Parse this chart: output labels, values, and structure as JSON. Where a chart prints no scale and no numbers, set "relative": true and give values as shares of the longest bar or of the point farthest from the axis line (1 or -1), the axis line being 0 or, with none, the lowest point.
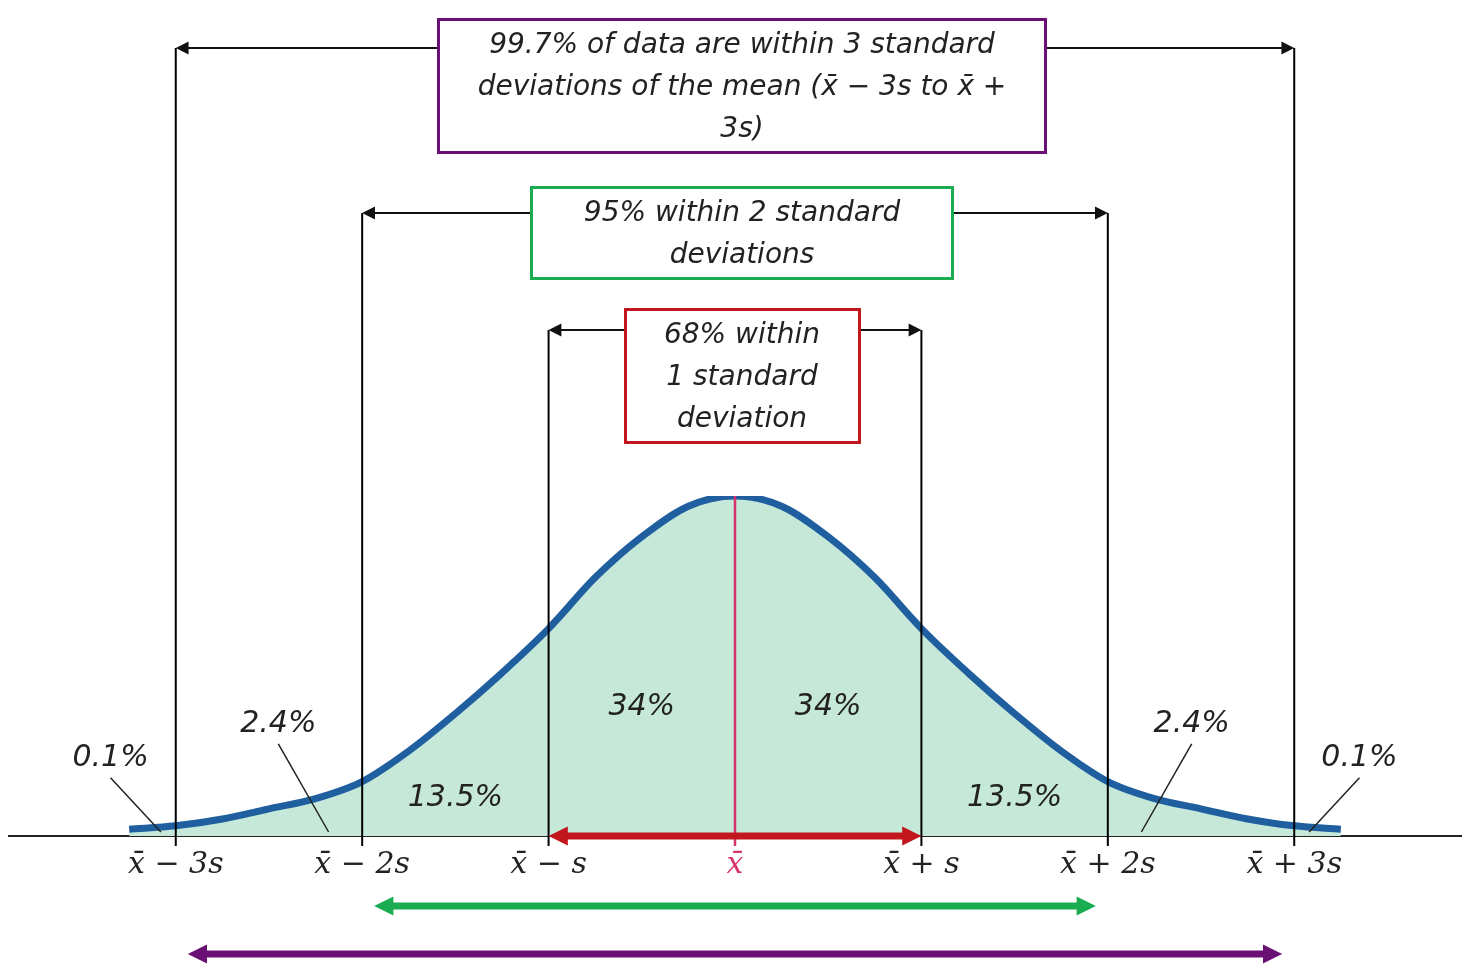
{
  "chart_data": {
    "type": "area",
    "relative": true,
    "xlim": [
      -3.9,
      3.9
    ],
    "xticks": [
      {
        "value": -3,
        "label": "x̄ − 3s"
      },
      {
        "value": -2,
        "label": "x̄ − 2s"
      },
      {
        "value": -1,
        "label": "x̄ − s"
      },
      {
        "value": 0,
        "label": "x̄"
      },
      {
        "value": 1,
        "label": "x̄ + s"
      },
      {
        "value": 2,
        "label": "x̄ + 2s"
      },
      {
        "value": 3,
        "label": "x̄ + 3s"
      }
    ],
    "x": [
      -3.25,
      -3,
      -2.75,
      -2.5,
      -2.25,
      -2,
      -1.75,
      -1.5,
      -1.25,
      -1,
      -0.75,
      -0.5,
      -0.25,
      0,
      0.25,
      0.5,
      0.75,
      1,
      1.25,
      1.5,
      1.75,
      2,
      2.25,
      2.5,
      2.75,
      3,
      3.25
    ],
    "series": [
      {
        "color": "#1f5fa0",
        "values": [
          0.02,
          0.03,
          0.05,
          0.08,
          0.11,
          0.16,
          0.25,
          0.36,
          0.48,
          0.61,
          0.76,
          0.88,
          0.97,
          1,
          0.97,
          0.88,
          0.76,
          0.61,
          0.48,
          0.36,
          0.25,
          0.16,
          0.11,
          0.08,
          0.05,
          0.03,
          0.02
        ]
      }
    ],
    "ref_lines": [
      {
        "axis": "x",
        "value": -3,
        "color": "#000000"
      },
      {
        "axis": "x",
        "value": -2,
        "color": "#000000"
      },
      {
        "axis": "x",
        "value": -1,
        "color": "#000000"
      },
      {
        "axis": "x",
        "value": 0,
        "color": "#d6336c"
      },
      {
        "axis": "x",
        "value": 1,
        "color": "#000000"
      },
      {
        "axis": "x",
        "value": 2,
        "color": "#000000"
      },
      {
        "axis": "x",
        "value": 3,
        "color": "#000000"
      }
    ],
    "annotations": [
      "99.7% of data are within 3 standard deviations of the mean (x̄ − 3s to x̄ + 3s)",
      "95% within 2 standard deviations",
      "68% within 1 standard deviation",
      "0.1%",
      "2.4%",
      "13.5%",
      "34%",
      "34%",
      "13.5%",
      "2.4%",
      "0.1%"
    ]
  }
}
